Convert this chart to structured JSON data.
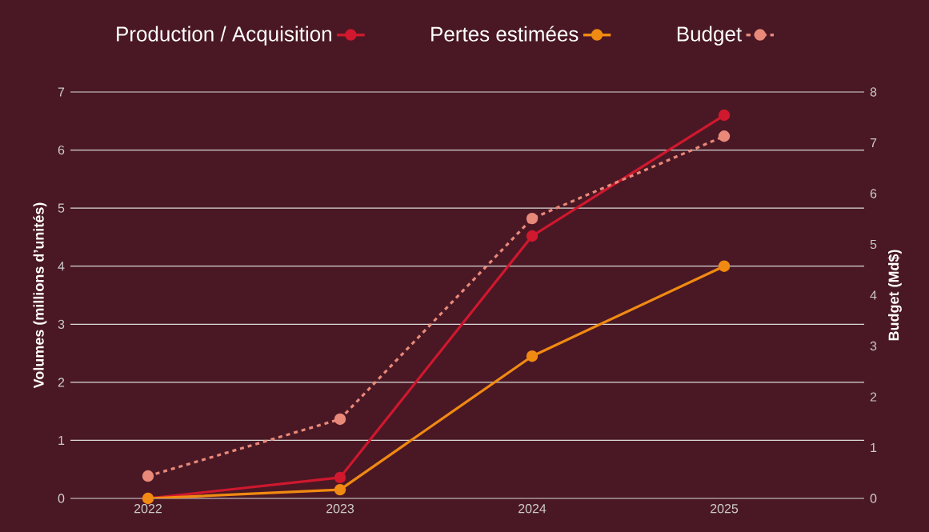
{
  "chart_data": {
    "type": "line",
    "categories": [
      "2022",
      "2023",
      "2024",
      "2025"
    ],
    "series": [
      {
        "name": "Production / Acquisition",
        "color": "#d0182e",
        "values": [
          0,
          0.36,
          4.52,
          6.6
        ]
      },
      {
        "name": "Pertes estimées",
        "color": "#f08a12",
        "values": [
          0,
          0.15,
          2.45,
          4.0
        ]
      },
      {
        "name": "Budget",
        "color": "#e8897a",
        "values": [
          0.44,
          1.56,
          5.51,
          7.13
        ],
        "axis": "y2",
        "line_style": "dotted"
      }
    ],
    "ylabel": "Volumes (millions d’unités)",
    "y2label": "Budget (Md$)",
    "ylim": [
      0,
      7
    ],
    "yticks": [
      0,
      1,
      2,
      3,
      4,
      5,
      6,
      7
    ],
    "y2lim": [
      0,
      8
    ],
    "y2ticks": [
      0,
      1,
      2,
      3,
      4,
      5,
      6,
      7,
      8
    ],
    "grid": "y",
    "legend": "top",
    "marker": "circle",
    "line_style": "solid"
  }
}
